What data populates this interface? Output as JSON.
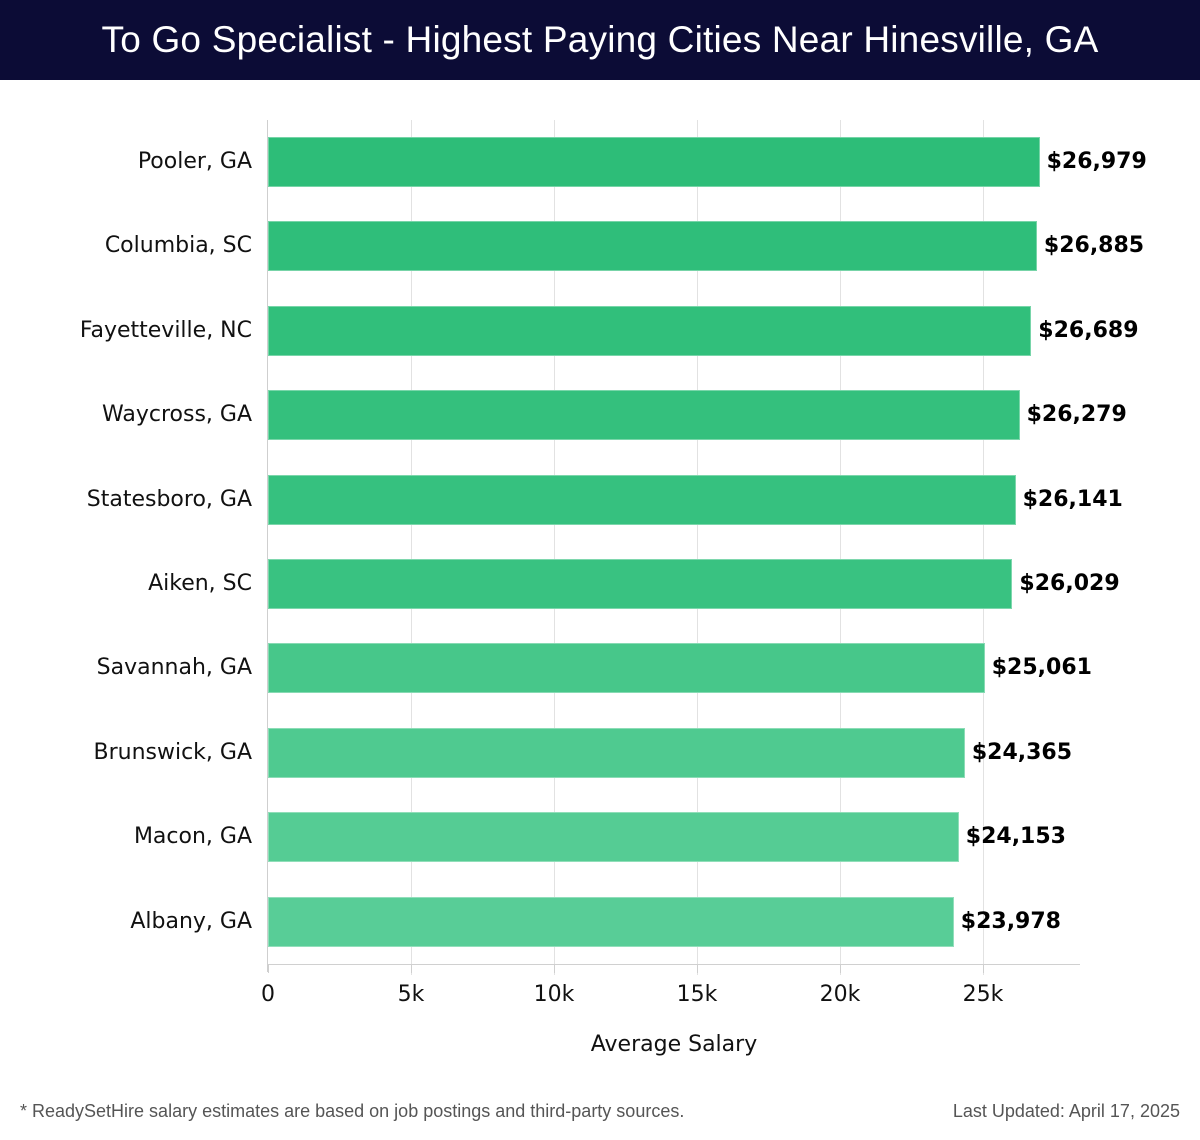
{
  "header": {
    "title": "To Go Specialist - Highest Paying Cities Near Hinesville, GA"
  },
  "chart_data": {
    "type": "bar",
    "orientation": "horizontal",
    "title": "To Go Specialist - Highest Paying Cities Near Hinesville, GA",
    "xlabel": "Average Salary",
    "ylabel": "",
    "xlim": [
      0,
      28400
    ],
    "grid": true,
    "x_ticks": [
      0,
      5000,
      10000,
      15000,
      20000,
      25000
    ],
    "x_tick_labels": [
      "0",
      "5k",
      "10k",
      "15k",
      "20k",
      "25k"
    ],
    "categories": [
      "Pooler, GA",
      "Columbia, SC",
      "Fayetteville, NC",
      "Waycross, GA",
      "Statesboro, GA",
      "Aiken, SC",
      "Savannah, GA",
      "Brunswick, GA",
      "Macon, GA",
      "Albany, GA"
    ],
    "values": [
      26979,
      26885,
      26689,
      26279,
      26141,
      26029,
      25061,
      24365,
      24153,
      23978
    ],
    "value_labels": [
      "$26,979",
      "$26,885",
      "$26,689",
      "$26,279",
      "$26,141",
      "$26,029",
      "$25,061",
      "$24,365",
      "$24,153",
      "$23,978"
    ],
    "bar_colors": [
      "#2dbd78",
      "#2fbe7a",
      "#31bf7b",
      "#34c07d",
      "#36c17f",
      "#39c281",
      "#47c78a",
      "#4fca90",
      "#55cc94",
      "#58cd97"
    ]
  },
  "footer": {
    "note": "* ReadySetHire salary estimates are based on job postings and third-party sources.",
    "updated": "Last Updated: April 17, 2025"
  },
  "colors": {
    "header_bg": "#0c0c36",
    "bar_primary": "#2dbd78",
    "gridline": "#e2e2e2"
  }
}
